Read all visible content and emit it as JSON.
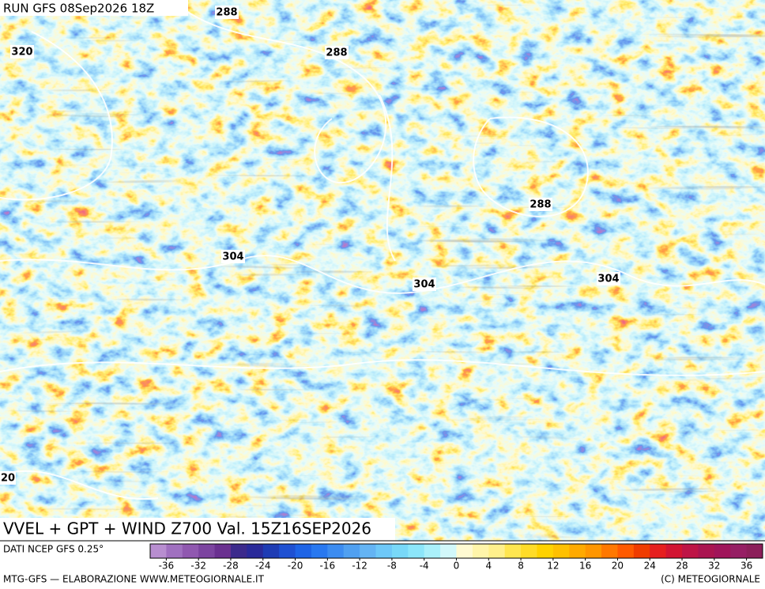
{
  "header": {
    "run": "RUN GFS 08Sep2026 18Z"
  },
  "contour_labels": [
    "288",
    "320",
    "288",
    "288",
    "304",
    "304",
    "304",
    "20"
  ],
  "title": "VVEL + GPT + WIND Z700 Val. 15Z16SEP2026",
  "source": "DATI NCEP GFS 0.25°",
  "colorbar": {
    "lim": [
      -38,
      38
    ],
    "colors": [
      "#b88ed0",
      "#a070c0",
      "#9058b0",
      "#7c44a0",
      "#6a3090",
      "#3c2a8c",
      "#2a2a9a",
      "#1e3cb4",
      "#1e50d2",
      "#1e64e6",
      "#2878f0",
      "#3c8cf0",
      "#50a0f0",
      "#64b4f4",
      "#6ec8f8",
      "#78d8f8",
      "#8ce6fa",
      "#aaf0fa",
      "#d2f8fa",
      "#fffad2",
      "#fff5aa",
      "#fff08c",
      "#ffe650",
      "#ffdc28",
      "#ffd200",
      "#ffc000",
      "#ffaa00",
      "#ff9600",
      "#ff7800",
      "#ff5a00",
      "#f03c00",
      "#e61e1e",
      "#d21432",
      "#be1446",
      "#aa1450",
      "#a0145a",
      "#961e64",
      "#8c1e5a"
    ],
    "ticks": [
      -36,
      -32,
      -28,
      -24,
      -20,
      -16,
      -12,
      -8,
      -4,
      0,
      4,
      8,
      12,
      16,
      20,
      24,
      28,
      32,
      36
    ]
  },
  "footer": {
    "left": "MTG-GFS — ELABORAZIONE WWW.METEOGIORNALE.IT",
    "right": "(C) METEOGIORNALE"
  }
}
